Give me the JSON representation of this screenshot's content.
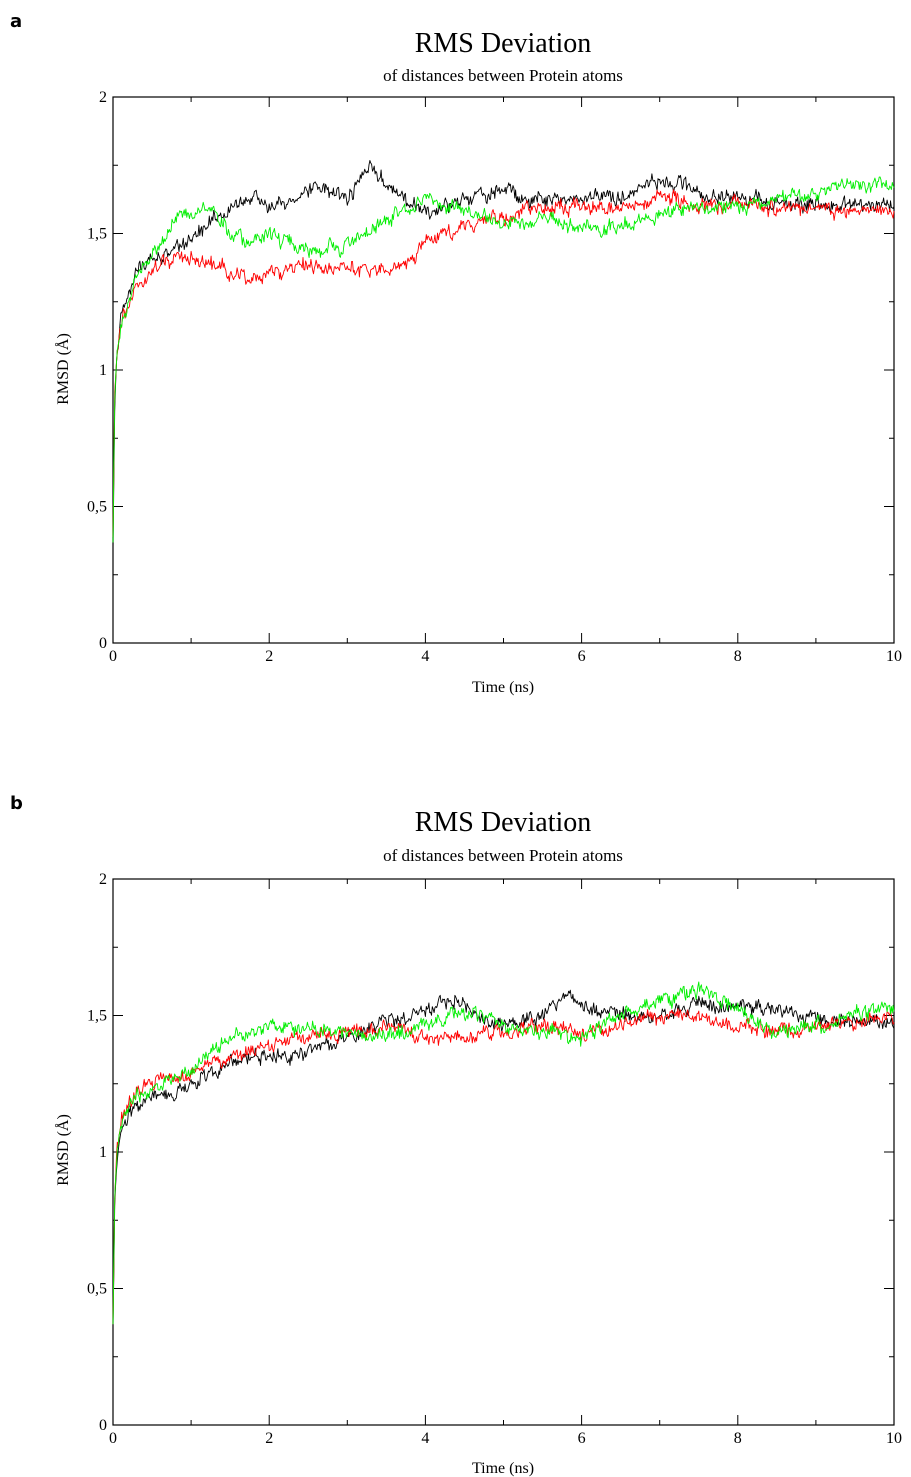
{
  "chart_data": [
    {
      "type": "line",
      "panel": "a",
      "title": "RMS Deviation",
      "subtitle": "of distances between Protein atoms",
      "xlabel": "Time (ns)",
      "ylabel": "RMSD (Å)",
      "xlim": [
        0,
        10
      ],
      "ylim": [
        0,
        2
      ],
      "xticks": [
        "0",
        "2",
        "4",
        "6",
        "8",
        "10"
      ],
      "yticks": [
        "0",
        "0,5",
        "1",
        "1,5",
        "2"
      ],
      "grid": false,
      "series": [
        {
          "color": "#000000",
          "x": [
            0,
            0.02,
            0.05,
            0.1,
            0.2,
            0.3,
            0.5,
            0.7,
            1.0,
            1.2,
            1.5,
            1.8,
            2.0,
            2.3,
            2.7,
            3.0,
            3.3,
            3.5,
            3.8,
            4.0,
            4.5,
            5.0,
            5.5,
            6.0,
            6.5,
            7.0,
            7.5,
            8.0,
            8.5,
            9.0,
            9.5,
            10.0
          ],
          "values": [
            0.35,
            0.85,
            1.05,
            1.18,
            1.28,
            1.38,
            1.4,
            1.42,
            1.48,
            1.52,
            1.6,
            1.64,
            1.6,
            1.63,
            1.68,
            1.62,
            1.75,
            1.68,
            1.6,
            1.57,
            1.62,
            1.66,
            1.62,
            1.63,
            1.64,
            1.7,
            1.65,
            1.63,
            1.62,
            1.6,
            1.61,
            1.6
          ]
        },
        {
          "color": "#ff0000",
          "x": [
            0,
            0.02,
            0.05,
            0.1,
            0.2,
            0.3,
            0.5,
            0.7,
            1.0,
            1.2,
            1.5,
            1.8,
            2.0,
            2.5,
            3.0,
            3.5,
            3.8,
            4.0,
            4.5,
            5.0,
            5.5,
            6.0,
            6.5,
            7.0,
            7.5,
            8.0,
            8.5,
            9.0,
            9.5,
            10.0
          ],
          "values": [
            0.4,
            0.9,
            1.08,
            1.15,
            1.25,
            1.3,
            1.36,
            1.4,
            1.42,
            1.4,
            1.35,
            1.33,
            1.36,
            1.38,
            1.37,
            1.36,
            1.4,
            1.46,
            1.53,
            1.56,
            1.59,
            1.6,
            1.6,
            1.64,
            1.6,
            1.6,
            1.6,
            1.59,
            1.58,
            1.6
          ]
        },
        {
          "color": "#00ee00",
          "x": [
            0,
            0.02,
            0.05,
            0.1,
            0.2,
            0.3,
            0.5,
            0.7,
            0.8,
            1.0,
            1.2,
            1.5,
            1.8,
            2.0,
            2.5,
            3.0,
            3.5,
            4.0,
            4.5,
            5.0,
            5.5,
            6.0,
            6.5,
            7.0,
            7.5,
            8.0,
            8.5,
            9.0,
            9.5,
            10.0
          ],
          "values": [
            0.38,
            0.88,
            1.06,
            1.16,
            1.26,
            1.34,
            1.42,
            1.5,
            1.56,
            1.58,
            1.6,
            1.5,
            1.46,
            1.5,
            1.43,
            1.46,
            1.55,
            1.63,
            1.58,
            1.53,
            1.55,
            1.52,
            1.52,
            1.56,
            1.6,
            1.6,
            1.63,
            1.65,
            1.68,
            1.68
          ]
        }
      ]
    },
    {
      "type": "line",
      "panel": "b",
      "title": "RMS Deviation",
      "subtitle": "of distances between Protein atoms",
      "xlabel": "Time (ns)",
      "ylabel": "RMSD (Å)",
      "xlim": [
        0,
        10
      ],
      "ylim": [
        0,
        2
      ],
      "xticks": [
        "0",
        "2",
        "4",
        "6",
        "8",
        "10"
      ],
      "yticks": [
        "0",
        "0,5",
        "1",
        "1,5",
        "2"
      ],
      "grid": false,
      "series": [
        {
          "color": "#000000",
          "x": [
            0,
            0.02,
            0.05,
            0.1,
            0.2,
            0.3,
            0.5,
            0.8,
            1.0,
            1.3,
            1.6,
            2.0,
            2.3,
            2.6,
            3.0,
            3.3,
            3.6,
            4.0,
            4.4,
            4.7,
            5.0,
            5.5,
            5.8,
            6.2,
            6.6,
            7.0,
            7.5,
            8.0,
            8.5,
            9.0,
            9.5,
            10.0
          ],
          "values": [
            0.35,
            0.78,
            0.98,
            1.08,
            1.13,
            1.17,
            1.2,
            1.22,
            1.25,
            1.3,
            1.34,
            1.35,
            1.35,
            1.37,
            1.42,
            1.46,
            1.48,
            1.52,
            1.56,
            1.5,
            1.47,
            1.5,
            1.58,
            1.52,
            1.5,
            1.5,
            1.54,
            1.54,
            1.52,
            1.48,
            1.48,
            1.47
          ]
        },
        {
          "color": "#ff0000",
          "x": [
            0,
            0.02,
            0.05,
            0.1,
            0.2,
            0.3,
            0.5,
            0.8,
            1.0,
            1.3,
            1.6,
            2.0,
            2.4,
            2.8,
            3.2,
            3.6,
            4.0,
            4.5,
            5.0,
            5.5,
            6.0,
            6.5,
            7.0,
            7.5,
            8.0,
            8.5,
            9.0,
            9.5,
            10.0
          ],
          "values": [
            0.36,
            0.82,
            1.02,
            1.12,
            1.18,
            1.22,
            1.26,
            1.28,
            1.3,
            1.32,
            1.36,
            1.4,
            1.42,
            1.43,
            1.44,
            1.46,
            1.42,
            1.42,
            1.44,
            1.46,
            1.44,
            1.46,
            1.5,
            1.5,
            1.46,
            1.44,
            1.46,
            1.48,
            1.5
          ]
        },
        {
          "color": "#00ee00",
          "x": [
            0,
            0.02,
            0.05,
            0.1,
            0.2,
            0.3,
            0.5,
            0.8,
            1.0,
            1.3,
            1.6,
            2.0,
            2.4,
            2.8,
            3.2,
            3.6,
            4.0,
            4.5,
            5.0,
            5.5,
            6.0,
            6.5,
            7.0,
            7.5,
            8.0,
            8.5,
            9.0,
            9.5,
            10.0
          ],
          "values": [
            0.36,
            0.8,
            1.0,
            1.1,
            1.16,
            1.2,
            1.24,
            1.27,
            1.3,
            1.38,
            1.42,
            1.46,
            1.45,
            1.44,
            1.44,
            1.42,
            1.48,
            1.52,
            1.45,
            1.44,
            1.42,
            1.5,
            1.55,
            1.6,
            1.52,
            1.44,
            1.46,
            1.5,
            1.53
          ]
        }
      ]
    }
  ],
  "panels": [
    {
      "letter": "a"
    },
    {
      "letter": "b"
    }
  ]
}
